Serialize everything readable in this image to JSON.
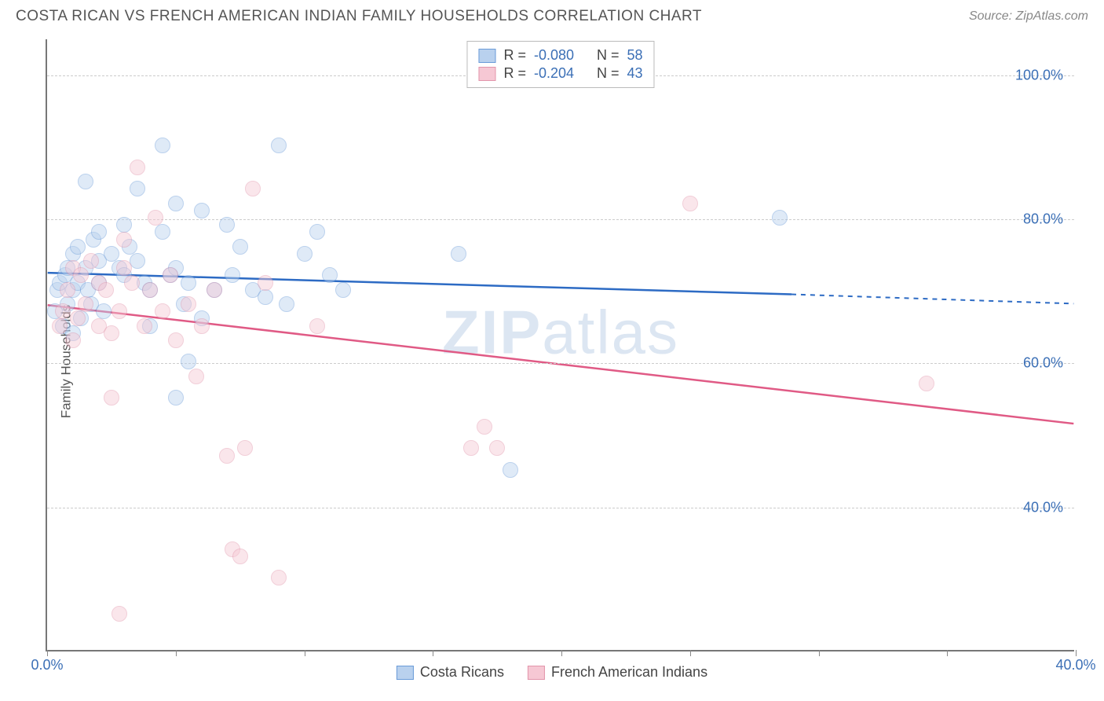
{
  "title": "COSTA RICAN VS FRENCH AMERICAN INDIAN FAMILY HOUSEHOLDS CORRELATION CHART",
  "source_label": "Source: ZipAtlas.com",
  "y_axis_title": "Family Households",
  "watermark_a": "ZIP",
  "watermark_b": "atlas",
  "chart": {
    "type": "scatter-correlation",
    "background_color": "#ffffff",
    "grid_color": "#cccccc",
    "axis_color": "#777777",
    "xlim": [
      0,
      40
    ],
    "ylim": [
      20,
      105
    ],
    "x_ticks": [
      0,
      5,
      10,
      15,
      20,
      25,
      30,
      35,
      40
    ],
    "x_tick_labels": {
      "0": "0.0%",
      "40": "40.0%"
    },
    "x_tick_color": "#3b6fb6",
    "y_gridlines": [
      40,
      60,
      80,
      100
    ],
    "y_tick_labels": {
      "40": "40.0%",
      "60": "60.0%",
      "80": "80.0%",
      "100": "100.0%"
    },
    "y_tick_color": "#3b6fb6",
    "point_radius": 10,
    "point_opacity": 0.45,
    "legend_stats": [
      {
        "swatch_fill": "#b9d1ee",
        "swatch_stroke": "#6a9bd8",
        "r_label": "R =",
        "r_value": "-0.080",
        "n_label": "N =",
        "n_value": "58"
      },
      {
        "swatch_fill": "#f6c8d4",
        "swatch_stroke": "#e295ab",
        "r_label": "R =",
        "r_value": "-0.204",
        "n_label": "N =",
        "n_value": "43"
      }
    ],
    "legend_value_color": "#3b6fb6",
    "legend_label_color": "#444444",
    "legend_bottom": [
      {
        "swatch_fill": "#b9d1ee",
        "swatch_stroke": "#6a9bd8",
        "label": "Costa Ricans"
      },
      {
        "swatch_fill": "#f6c8d4",
        "swatch_stroke": "#e295ab",
        "label": "French American Indians"
      }
    ],
    "series": [
      {
        "name": "costa_ricans",
        "point_fill": "#b9d1ee",
        "point_stroke": "#6a9bd8",
        "trend_color": "#2d6bc4",
        "trend_width": 2.5,
        "trend": {
          "x1": 0,
          "y1": 72.5,
          "x2_solid": 29,
          "y2_solid": 69.5,
          "x2_dash": 40,
          "y2_dash": 68.2
        },
        "points": [
          [
            0.3,
            67
          ],
          [
            0.4,
            70
          ],
          [
            0.5,
            71
          ],
          [
            0.6,
            65
          ],
          [
            0.7,
            72
          ],
          [
            0.8,
            68
          ],
          [
            0.8,
            73
          ],
          [
            1.0,
            64
          ],
          [
            1.0,
            70
          ],
          [
            1.0,
            75
          ],
          [
            1.2,
            71
          ],
          [
            1.2,
            76
          ],
          [
            1.3,
            66
          ],
          [
            1.5,
            85
          ],
          [
            1.5,
            73
          ],
          [
            1.6,
            70
          ],
          [
            1.7,
            68
          ],
          [
            1.8,
            77
          ],
          [
            2.0,
            74
          ],
          [
            2.0,
            71
          ],
          [
            2.0,
            78
          ],
          [
            2.2,
            67
          ],
          [
            2.5,
            75
          ],
          [
            2.8,
            73
          ],
          [
            3.0,
            72
          ],
          [
            3.0,
            79
          ],
          [
            3.2,
            76
          ],
          [
            3.5,
            74
          ],
          [
            3.5,
            84
          ],
          [
            3.8,
            71
          ],
          [
            4.0,
            70
          ],
          [
            4.0,
            65
          ],
          [
            4.5,
            90
          ],
          [
            4.5,
            78
          ],
          [
            4.8,
            72
          ],
          [
            5.0,
            82
          ],
          [
            5.0,
            73
          ],
          [
            5.0,
            55
          ],
          [
            5.3,
            68
          ],
          [
            5.5,
            71
          ],
          [
            5.5,
            60
          ],
          [
            6.0,
            81
          ],
          [
            6.0,
            66
          ],
          [
            6.5,
            70
          ],
          [
            7.0,
            79
          ],
          [
            7.2,
            72
          ],
          [
            7.5,
            76
          ],
          [
            8.0,
            70
          ],
          [
            8.5,
            69
          ],
          [
            9.0,
            90
          ],
          [
            9.3,
            68
          ],
          [
            10.0,
            75
          ],
          [
            10.5,
            78
          ],
          [
            11.0,
            72
          ],
          [
            11.5,
            70
          ],
          [
            16.0,
            75
          ],
          [
            18.0,
            45
          ],
          [
            28.5,
            80
          ]
        ]
      },
      {
        "name": "french_american_indians",
        "point_fill": "#f6c8d4",
        "point_stroke": "#e295ab",
        "trend_color": "#e05a85",
        "trend_width": 2.5,
        "trend": {
          "x1": 0,
          "y1": 68,
          "x2_solid": 40,
          "y2_solid": 51.5,
          "x2_dash": 40,
          "y2_dash": 51.5
        },
        "points": [
          [
            0.5,
            65
          ],
          [
            0.6,
            67
          ],
          [
            0.8,
            70
          ],
          [
            1.0,
            73
          ],
          [
            1.0,
            63
          ],
          [
            1.2,
            66
          ],
          [
            1.3,
            72
          ],
          [
            1.5,
            68
          ],
          [
            1.7,
            74
          ],
          [
            2.0,
            65
          ],
          [
            2.0,
            71
          ],
          [
            2.3,
            70
          ],
          [
            2.5,
            64
          ],
          [
            2.8,
            67
          ],
          [
            3.0,
            73
          ],
          [
            3.0,
            77
          ],
          [
            3.3,
            71
          ],
          [
            3.5,
            87
          ],
          [
            3.8,
            65
          ],
          [
            4.0,
            70
          ],
          [
            4.2,
            80
          ],
          [
            4.5,
            67
          ],
          [
            4.8,
            72
          ],
          [
            5.0,
            63
          ],
          [
            5.5,
            68
          ],
          [
            5.8,
            58
          ],
          [
            6.0,
            65
          ],
          [
            6.5,
            70
          ],
          [
            7.0,
            47
          ],
          [
            7.2,
            34
          ],
          [
            7.5,
            33
          ],
          [
            7.7,
            48
          ],
          [
            8.0,
            84
          ],
          [
            8.5,
            71
          ],
          [
            9.0,
            30
          ],
          [
            10.5,
            65
          ],
          [
            2.8,
            25
          ],
          [
            16.5,
            48
          ],
          [
            17.0,
            51
          ],
          [
            17.5,
            48
          ],
          [
            25.0,
            82
          ],
          [
            34.2,
            57
          ],
          [
            2.5,
            55
          ]
        ]
      }
    ]
  }
}
